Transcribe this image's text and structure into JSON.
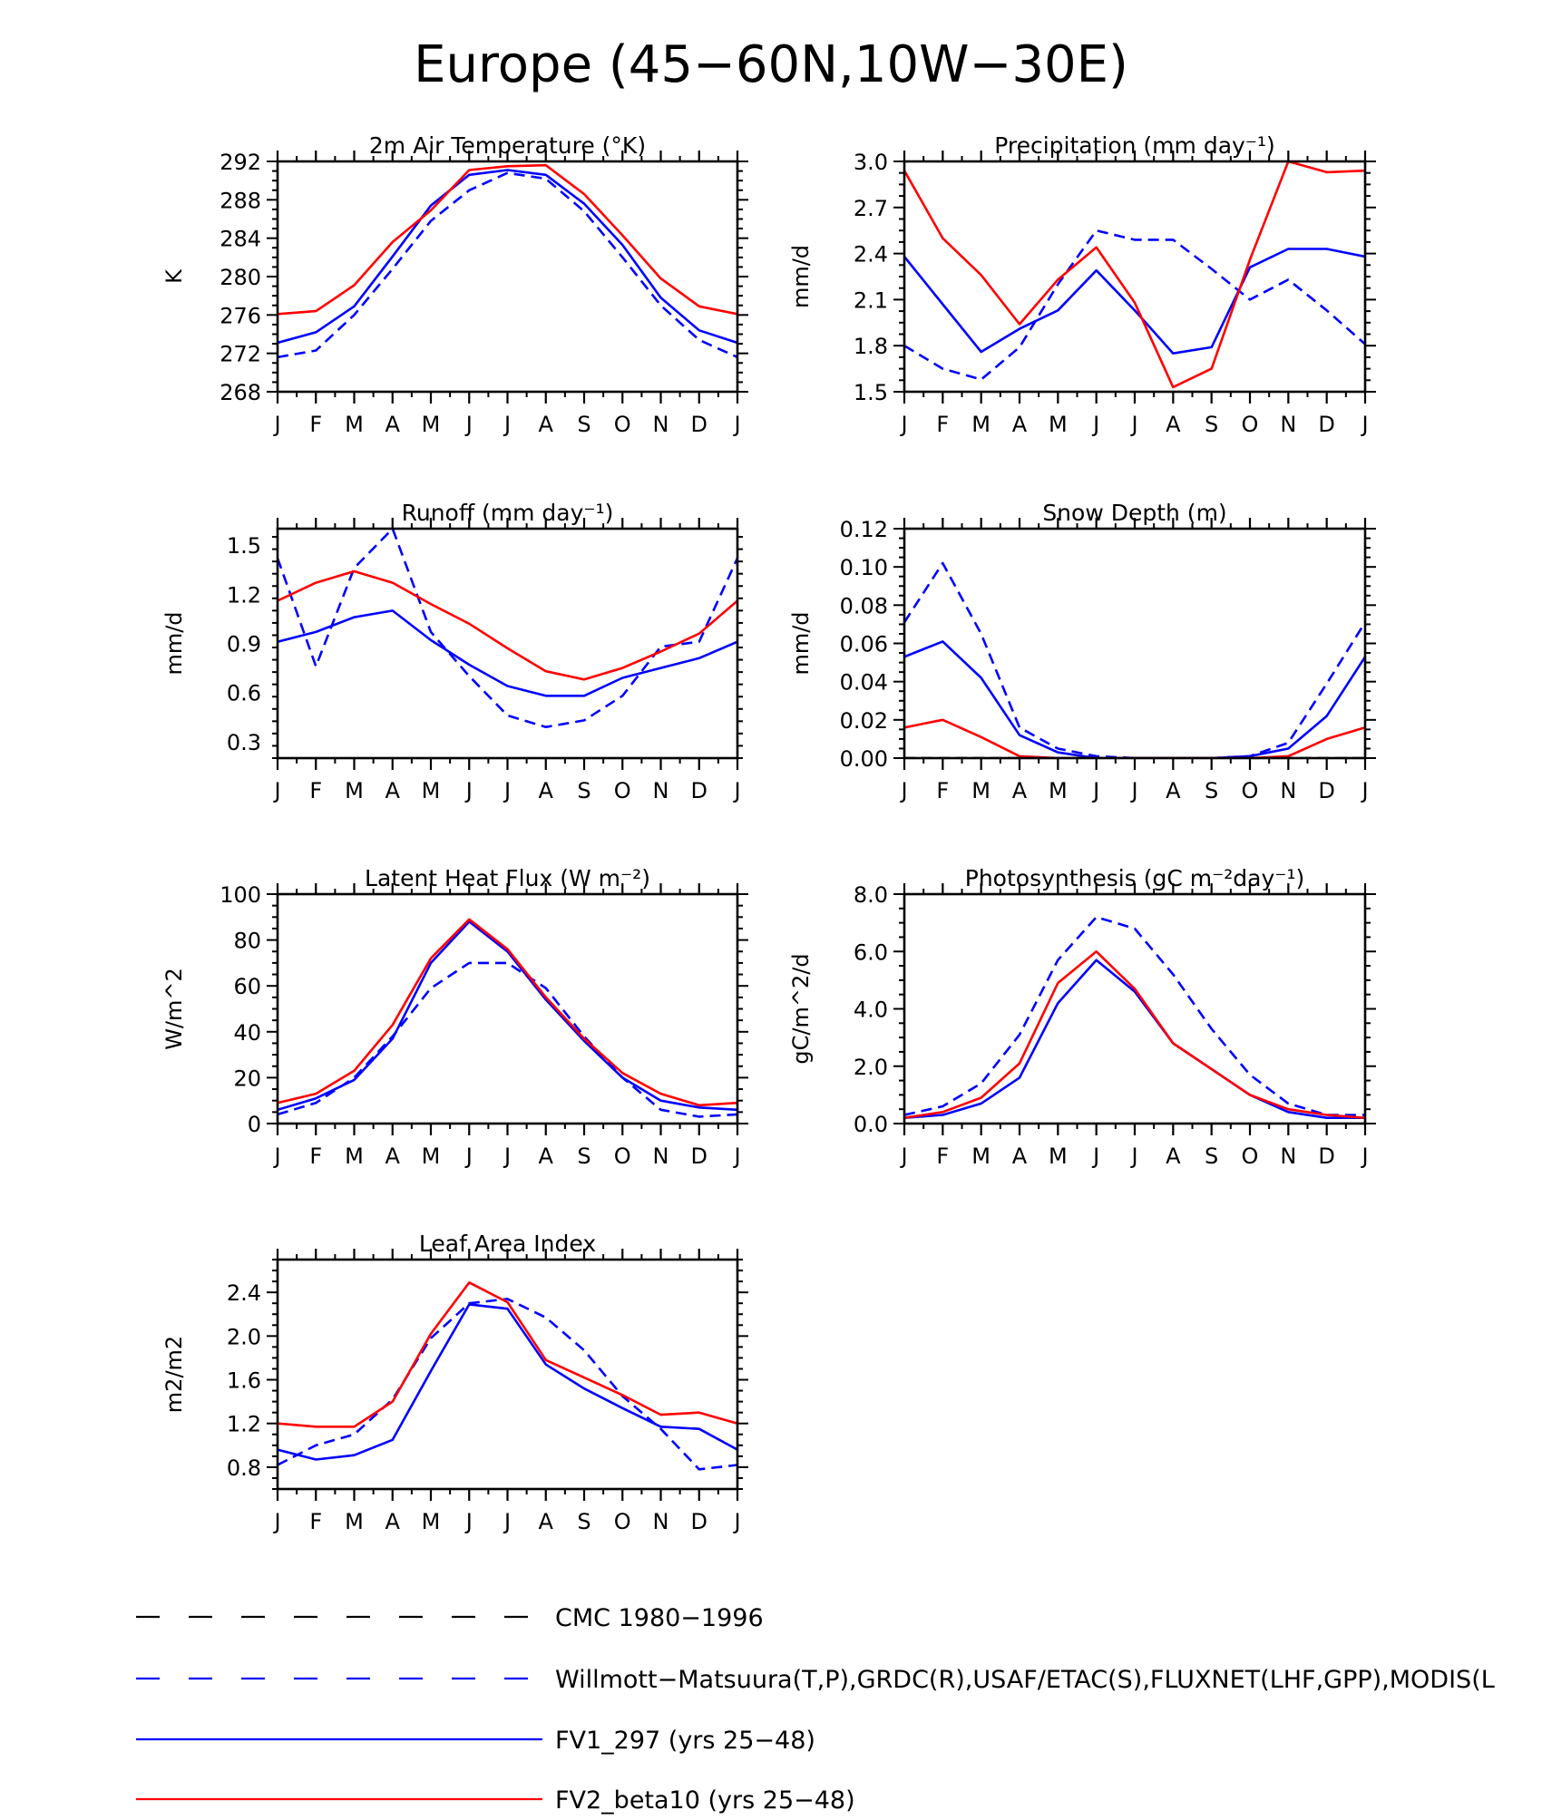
{
  "figure": {
    "title": "Europe (45−60N,10W−30E)",
    "months": [
      "J",
      "F",
      "M",
      "A",
      "M",
      "J",
      "J",
      "A",
      "S",
      "O",
      "N",
      "D",
      "J"
    ]
  },
  "legend": [
    {
      "label": "CMC 1980−1996",
      "color": "#000000",
      "dash": "long"
    },
    {
      "label": "Willmott−Matsuura(T,P),GRDC(R),USAF/ETAC(S),FLUXNET(LHF,GPP),MODIS(L",
      "color": "#0000ff",
      "dash": "long"
    },
    {
      "label": "FV1_297 (yrs 25−48)",
      "color": "#0000ff",
      "dash": "solid"
    },
    {
      "label": "FV2_beta10 (yrs 25−48)",
      "color": "#ff0000",
      "dash": "solid"
    }
  ],
  "chart_data": [
    {
      "type": "line",
      "title": "2m Air Temperature (°K)",
      "ylabel": "K",
      "ylim": [
        268,
        292
      ],
      "yticks": [
        "268",
        "272",
        "276",
        "280",
        "284",
        "288",
        "292"
      ],
      "yticks_v": [
        268,
        272,
        276,
        280,
        284,
        288,
        292
      ],
      "series": [
        {
          "name": "Willmott−Matsuura",
          "color": "#0000ff",
          "dash": "dashed",
          "values": [
            271.6,
            272.3,
            276.0,
            280.8,
            285.8,
            289.0,
            290.8,
            290.2,
            286.8,
            282.0,
            277.0,
            273.4,
            271.6
          ]
        },
        {
          "name": "FV1_297",
          "color": "#0000ff",
          "dash": "solid",
          "values": [
            273.1,
            274.2,
            276.9,
            282.1,
            287.4,
            290.6,
            291.1,
            290.6,
            287.6,
            283.3,
            277.8,
            274.4,
            273.1
          ]
        },
        {
          "name": "FV2_beta10",
          "color": "#ff0000",
          "dash": "solid",
          "values": [
            276.1,
            276.4,
            279.1,
            283.6,
            286.9,
            291.1,
            291.5,
            291.6,
            288.6,
            284.3,
            279.8,
            276.9,
            276.1
          ]
        }
      ]
    },
    {
      "type": "line",
      "title": "Precipitation (mm day⁻¹)",
      "ylabel": "mm/d",
      "ylim": [
        1.5,
        3.0
      ],
      "yticks": [
        "1.5",
        "1.8",
        "2.1",
        "2.4",
        "2.7",
        "3.0"
      ],
      "yticks_v": [
        1.5,
        1.8,
        2.1,
        2.4,
        2.7,
        3.0
      ],
      "series": [
        {
          "name": "Willmott−Matsuura",
          "color": "#0000ff",
          "dash": "dashed",
          "values": [
            1.8,
            1.65,
            1.58,
            1.79,
            2.2,
            2.55,
            2.49,
            2.49,
            2.3,
            2.1,
            2.23,
            2.03,
            1.81
          ]
        },
        {
          "name": "FV1_297",
          "color": "#0000ff",
          "dash": "solid",
          "values": [
            2.38,
            2.07,
            1.76,
            1.91,
            2.03,
            2.29,
            2.03,
            1.75,
            1.79,
            2.31,
            2.43,
            2.43,
            2.38
          ]
        },
        {
          "name": "FV2_beta10",
          "color": "#ff0000",
          "dash": "solid",
          "values": [
            2.94,
            2.5,
            2.26,
            1.94,
            2.23,
            2.44,
            2.08,
            1.53,
            1.65,
            2.36,
            3.0,
            2.93,
            2.94
          ]
        }
      ]
    },
    {
      "type": "line",
      "title": "Runoff (mm day⁻¹)",
      "ylabel": "mm/d",
      "ylim": [
        0.2,
        1.6
      ],
      "yticks": [
        "0.3",
        "0.6",
        "0.9",
        "1.2",
        "1.5"
      ],
      "yticks_v": [
        0.3,
        0.6,
        0.9,
        1.2,
        1.5
      ],
      "series": [
        {
          "name": "Willmott−Matsuura",
          "color": "#0000ff",
          "dash": "dashed",
          "values": [
            1.42,
            0.76,
            1.36,
            1.6,
            0.97,
            0.7,
            0.46,
            0.39,
            0.43,
            0.58,
            0.88,
            0.91,
            1.42
          ]
        },
        {
          "name": "FV1_297",
          "color": "#0000ff",
          "dash": "solid",
          "values": [
            0.91,
            0.97,
            1.06,
            1.1,
            0.92,
            0.77,
            0.64,
            0.58,
            0.58,
            0.69,
            0.75,
            0.81,
            0.91
          ]
        },
        {
          "name": "FV2_beta10",
          "color": "#ff0000",
          "dash": "solid",
          "values": [
            1.16,
            1.27,
            1.34,
            1.27,
            1.14,
            1.02,
            0.87,
            0.73,
            0.68,
            0.75,
            0.85,
            0.96,
            1.16
          ]
        }
      ]
    },
    {
      "type": "line",
      "title": "Snow Depth (m)",
      "ylabel": "mm/d",
      "ylim": [
        0.0,
        0.12
      ],
      "yticks": [
        "0.00",
        "0.02",
        "0.04",
        "0.06",
        "0.08",
        "0.10",
        "0.12"
      ],
      "yticks_v": [
        0.0,
        0.02,
        0.04,
        0.06,
        0.08,
        0.1,
        0.12
      ],
      "series": [
        {
          "name": "CMC 1980−1996",
          "color": "#000000",
          "dash": "dashed",
          "values": [
            0.0,
            0.0,
            0.0,
            0.0,
            0.0,
            0.0,
            0.0,
            0.0,
            0.0,
            0.0,
            0.0,
            0.0,
            0.0
          ]
        },
        {
          "name": "Willmott−Matsuura",
          "color": "#0000ff",
          "dash": "dashed",
          "values": [
            0.071,
            0.102,
            0.065,
            0.016,
            0.005,
            0.001,
            0.0,
            0.0,
            0.0,
            0.001,
            0.008,
            0.039,
            0.071
          ]
        },
        {
          "name": "FV1_297",
          "color": "#0000ff",
          "dash": "solid",
          "values": [
            0.053,
            0.061,
            0.042,
            0.012,
            0.003,
            0.0,
            0.0,
            0.0,
            0.0,
            0.001,
            0.005,
            0.022,
            0.053
          ]
        },
        {
          "name": "FV2_beta10",
          "color": "#ff0000",
          "dash": "solid",
          "values": [
            0.016,
            0.02,
            0.011,
            0.001,
            0.0,
            0.0,
            0.0,
            0.0,
            0.0,
            0.0,
            0.001,
            0.01,
            0.016
          ]
        }
      ]
    },
    {
      "type": "line",
      "title": "Latent Heat Flux (W m⁻²)",
      "ylabel": "W/m^2",
      "ylim": [
        0,
        100
      ],
      "yticks": [
        "0",
        "20",
        "40",
        "60",
        "80",
        "100"
      ],
      "yticks_v": [
        0,
        20,
        40,
        60,
        80,
        100
      ],
      "series": [
        {
          "name": "Willmott−Matsuura",
          "color": "#0000ff",
          "dash": "dashed",
          "values": [
            4,
            9,
            20,
            38,
            59,
            70,
            70,
            59,
            38,
            20,
            6,
            3,
            4
          ]
        },
        {
          "name": "FV1_297",
          "color": "#0000ff",
          "dash": "solid",
          "values": [
            6,
            11,
            19,
            37,
            70,
            88,
            75,
            54,
            36,
            20,
            10,
            7,
            6
          ]
        },
        {
          "name": "FV2_beta10",
          "color": "#ff0000",
          "dash": "solid",
          "values": [
            9,
            13,
            23,
            43,
            72,
            89,
            76,
            55,
            37,
            22,
            13,
            8,
            9
          ]
        }
      ]
    },
    {
      "type": "line",
      "title": "Photosynthesis (gC m⁻²day⁻¹)",
      "ylabel": "gC/m^2/d",
      "ylim": [
        0,
        8
      ],
      "yticks": [
        "0.0",
        "2.0",
        "4.0",
        "6.0",
        "8.0"
      ],
      "yticks_v": [
        0,
        2,
        4,
        6,
        8
      ],
      "series": [
        {
          "name": "Willmott−Matsuura",
          "color": "#0000ff",
          "dash": "dashed",
          "values": [
            0.3,
            0.6,
            1.4,
            3.1,
            5.7,
            7.2,
            6.8,
            5.2,
            3.3,
            1.7,
            0.7,
            0.3,
            0.3
          ]
        },
        {
          "name": "FV1_297",
          "color": "#0000ff",
          "dash": "solid",
          "values": [
            0.2,
            0.3,
            0.7,
            1.6,
            4.2,
            5.7,
            4.6,
            2.8,
            1.9,
            1.0,
            0.4,
            0.2,
            0.2
          ]
        },
        {
          "name": "FV2_beta10",
          "color": "#ff0000",
          "dash": "solid",
          "values": [
            0.2,
            0.4,
            0.9,
            2.1,
            4.9,
            6.0,
            4.7,
            2.8,
            1.9,
            1.0,
            0.5,
            0.3,
            0.2
          ]
        }
      ]
    },
    {
      "type": "line",
      "title": "Leaf Area Index",
      "ylabel": "m2/m2",
      "ylim": [
        0.6,
        2.7
      ],
      "yticks": [
        "0.8",
        "1.2",
        "1.6",
        "2.0",
        "2.4"
      ],
      "yticks_v": [
        0.8,
        1.2,
        1.6,
        2.0,
        2.4
      ],
      "series": [
        {
          "name": "Willmott−Matsuura",
          "color": "#0000ff",
          "dash": "dashed",
          "values": [
            0.82,
            1.0,
            1.1,
            1.42,
            1.98,
            2.3,
            2.34,
            2.17,
            1.87,
            1.45,
            1.15,
            0.78,
            0.82
          ]
        },
        {
          "name": "FV1_297",
          "color": "#0000ff",
          "dash": "solid",
          "values": [
            0.96,
            0.87,
            0.91,
            1.05,
            1.68,
            2.29,
            2.25,
            1.74,
            1.52,
            1.34,
            1.17,
            1.15,
            0.96
          ]
        },
        {
          "name": "FV2_beta10",
          "color": "#ff0000",
          "dash": "solid",
          "values": [
            1.2,
            1.17,
            1.17,
            1.4,
            2.02,
            2.49,
            2.31,
            1.78,
            1.62,
            1.46,
            1.28,
            1.3,
            1.2
          ]
        }
      ]
    }
  ]
}
